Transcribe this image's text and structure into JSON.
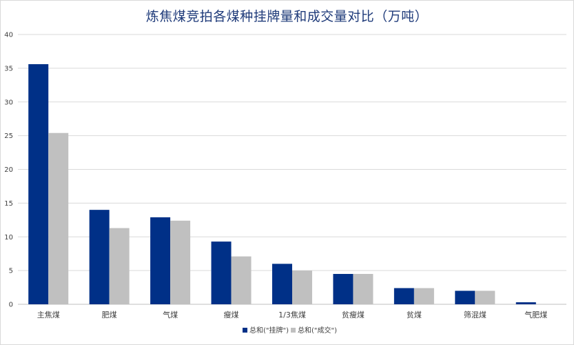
{
  "chart_data": {
    "type": "bar",
    "title": "炼焦煤竞拍各煤种挂牌量和成交量对比（万吨）",
    "categories": [
      "主焦煤",
      "肥煤",
      "气煤",
      "瘦煤",
      "1/3焦煤",
      "贫瘦煤",
      "贫煤",
      "筛混煤",
      "气肥煤"
    ],
    "series": [
      {
        "name": "总和(\"挂牌\")",
        "color": "#003087",
        "values": [
          35.6,
          14.0,
          12.9,
          9.3,
          6.0,
          4.5,
          2.4,
          2.0,
          0.3
        ]
      },
      {
        "name": "总和(\"成交\")",
        "color": "#c0c0c0",
        "values": [
          25.4,
          11.3,
          12.4,
          7.1,
          5.0,
          4.5,
          2.4,
          2.0,
          0
        ]
      }
    ],
    "ylim": [
      0,
      40
    ],
    "yticks": [
      0,
      5,
      10,
      15,
      20,
      25,
      30,
      35,
      40
    ],
    "grid": true,
    "legend_position": "bottom-center",
    "xlabel": "",
    "ylabel": ""
  }
}
